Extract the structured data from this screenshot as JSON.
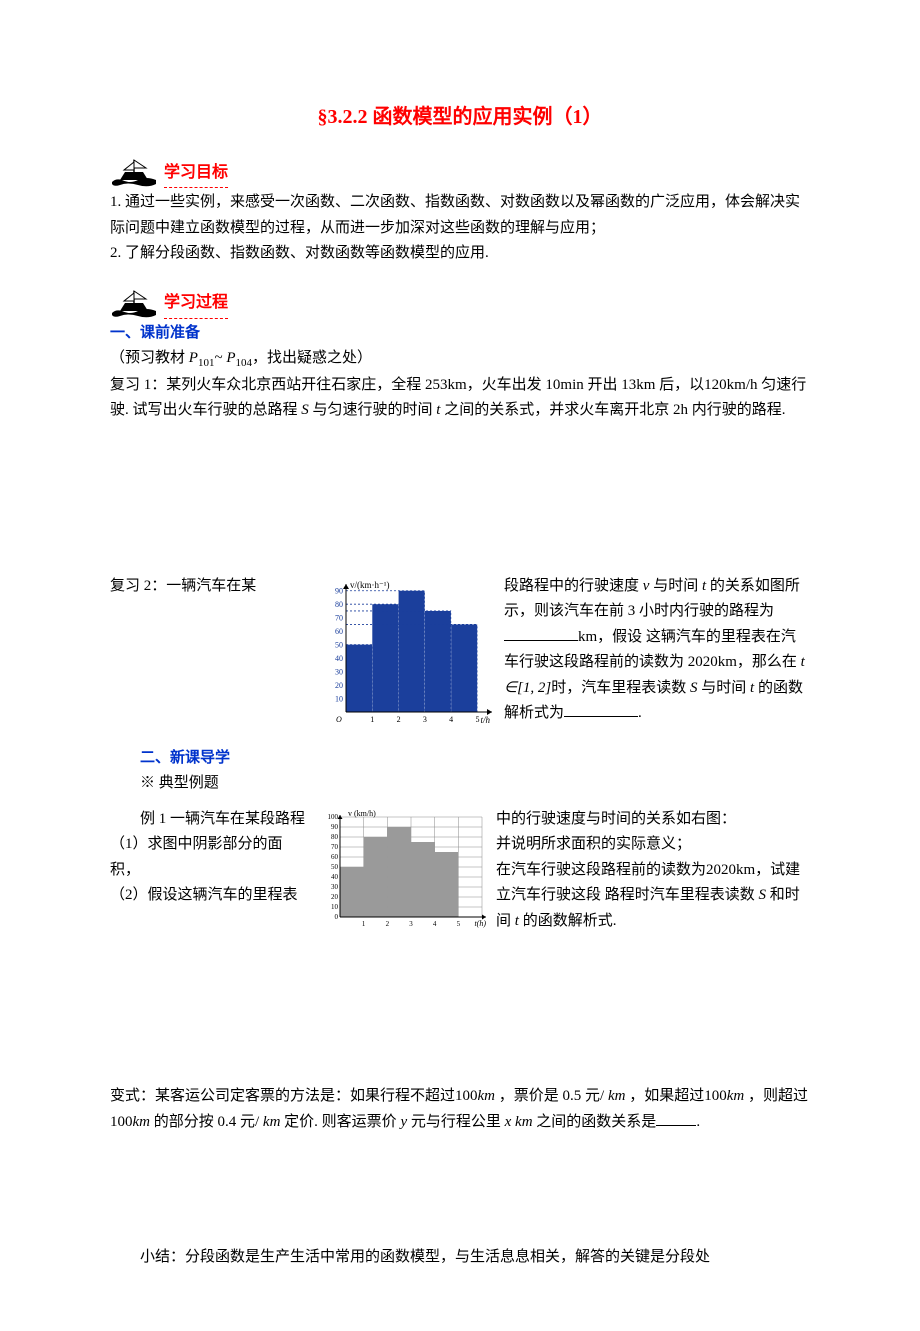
{
  "title": "§3.2.2 函数模型的应用实例（1）",
  "sections": {
    "goals_label": "学习目标",
    "process_label": "学习过程"
  },
  "goals": {
    "item1": "1.   通过一些实例，来感受一次函数、二次函数、指数函数、对数函数以及幂函数的广泛应用，体会解决实际问题中建立函数模型的过程，从而进一步加深对这些函数的理解与应用；",
    "item2": "2. 了解分段函数、指数函数、对数函数等函数模型的应用."
  },
  "prep": {
    "heading": "一、课前准备",
    "preview_prefix": "（预习教材 ",
    "preview_p1": "P",
    "preview_p1_sub": "101",
    "preview_tilde": "~ ",
    "preview_p2": "P",
    "preview_p2_sub": "104",
    "preview_suffix": "，找出疑惑之处）",
    "review1_a": "复习 1：某列火车众北京西站开往石家庄，全程 253km，火车出发 10min 开出 13km 后，以120km/h 匀速行驶.   试写出火车行驶的总路程 ",
    "review1_S": "S",
    "review1_b": " 与匀速行驶的时间 ",
    "review1_t": "t",
    "review1_c": " 之间的关系式，并求火车离开北京 2h 内行驶的路程."
  },
  "review2": {
    "l1a": "复习 2：一辆汽车在某",
    "l1b": "段路程中的行驶速度 ",
    "l1_v": "v",
    "l1c": " 与时间 ",
    "l1_t": "t",
    "l1d": " 的关系如图所示，则该汽车在前 3 小时内行驶的路程为",
    "l2a": "km，假设",
    "l2b": "这辆汽车的里程表在汽车行驶这段路程前的读数为 2020km，那么在",
    "l3_expr": "t ∈[1, 2]",
    "l3a": "时，汽车里程表读数",
    "l3_S": "S",
    "l3b": " 与时间 ",
    "l3_t": "t",
    "l3c": " 的函数解析式为",
    "l3d": "."
  },
  "chart1": {
    "type": "bar",
    "ylabel": "v/(km·h⁻¹)",
    "xlabel": "t/h",
    "x_ticks": [
      1,
      2,
      3,
      4,
      5
    ],
    "y_ticks": [
      10,
      20,
      30,
      40,
      50,
      60,
      70,
      80,
      90
    ],
    "values": [
      50,
      80,
      90,
      75,
      65
    ],
    "bar_color": "#1b3f9c",
    "axis_color": "#000000",
    "dash_color": "#1b3f9c",
    "background_color": "#ffffff",
    "xlim": [
      0,
      5.4
    ],
    "ylim": [
      0,
      95
    ],
    "tick_fontsize": 8,
    "label_fontsize": 9
  },
  "lecture": {
    "heading": "二、新课导学",
    "sub": "※ 典型例题"
  },
  "ex1": {
    "line1a": "例 1  一辆汽车在某段路程",
    "line1b": "中的行驶速度与时间的关系如右图：",
    "line2a": "（1）求图中阴影部分的面积，",
    "line2b": "并说明所求面积的实际意义；",
    "line3a": "（2）假设这辆汽车的里程表",
    "line3b": "在汽车行驶这段路程前的读数为2020km，试建立汽车行驶这段",
    "line3c": "路程时汽车里程表读数 ",
    "line3_S": "S",
    "line3d": " 和时间 ",
    "line3_t": "t",
    "line3e": " 的函数解析式."
  },
  "chart2": {
    "type": "bar",
    "ylabel": "v (km/h)",
    "xlabel": "t(h)",
    "x_ticks": [
      1,
      2,
      3,
      4,
      5
    ],
    "y_ticks": [
      10,
      20,
      30,
      40,
      50,
      60,
      70,
      80,
      90,
      100
    ],
    "values": [
      50,
      80,
      90,
      75,
      65
    ],
    "bar_fill": "#9a9a9a",
    "grid_color": "#8a8a8a",
    "axis_color": "#000000",
    "background_color": "#ffffff",
    "xlim": [
      0,
      6
    ],
    "ylim": [
      0,
      100
    ],
    "tick_fontsize": 7,
    "label_fontsize": 8
  },
  "variant": {
    "text_a": "变式：某客运公司定客票的方法是：如果行程不超过100",
    "km1": "km",
    "text_b": " ，票价是 0.5 元/ ",
    "km2": "km",
    "text_c": " ，如果超过100",
    "km3": "km",
    "text_d": " ，则超过100",
    "km4": "km",
    "text_e": " 的部分按 0.4 元/ ",
    "km5": "km",
    "text_f": " 定价.   则客运票价 ",
    "y": "y",
    "text_g": " 元与行程公里 ",
    "x": "x",
    "km6": " km",
    "text_h": " 之间的函数关系是",
    "text_i": "."
  },
  "summary": {
    "text": "小结：分段函数是生产生活中常用的函数模型，与生活息息相关，解答的关键是分段处"
  },
  "icon": {
    "stroke": "#000000",
    "fill_sail": "#ffffff"
  }
}
